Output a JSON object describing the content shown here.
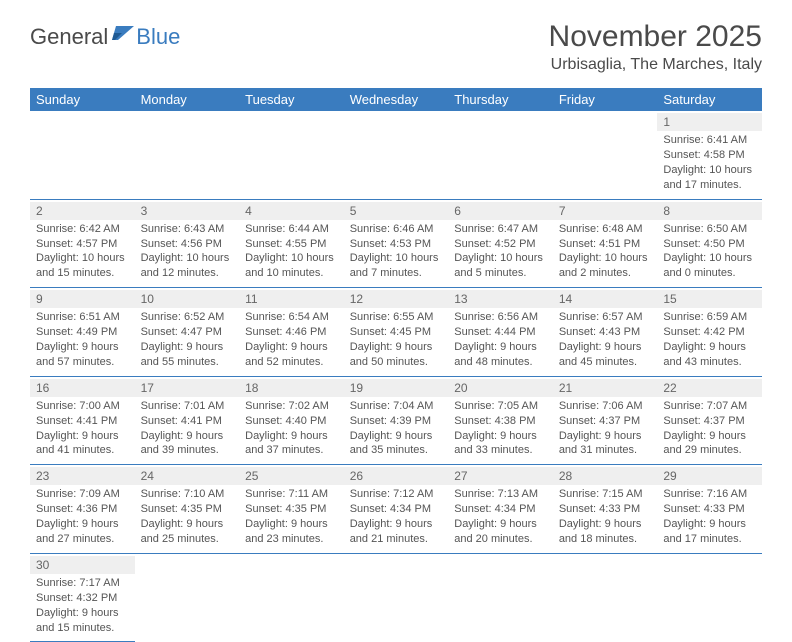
{
  "logo": {
    "text1": "General",
    "text2": "Blue"
  },
  "title": "November 2025",
  "location": "Urbisaglia, The Marches, Italy",
  "colors": {
    "header_bg": "#3a7cbf",
    "header_text": "#ffffff",
    "grid_line": "#3a7cbf",
    "daynum_bg": "#efefef",
    "text": "#555555",
    "logo_gray": "#4a4a4a",
    "logo_blue": "#3a7cbf"
  },
  "typography": {
    "title_fontsize": 30,
    "location_fontsize": 16,
    "header_fontsize": 13,
    "cell_fontsize": 11
  },
  "day_headers": [
    "Sunday",
    "Monday",
    "Tuesday",
    "Wednesday",
    "Thursday",
    "Friday",
    "Saturday"
  ],
  "weeks": [
    [
      null,
      null,
      null,
      null,
      null,
      null,
      {
        "num": "1",
        "sr": "Sunrise: 6:41 AM",
        "ss": "Sunset: 4:58 PM",
        "dl1": "Daylight: 10 hours",
        "dl2": "and 17 minutes."
      }
    ],
    [
      {
        "num": "2",
        "sr": "Sunrise: 6:42 AM",
        "ss": "Sunset: 4:57 PM",
        "dl1": "Daylight: 10 hours",
        "dl2": "and 15 minutes."
      },
      {
        "num": "3",
        "sr": "Sunrise: 6:43 AM",
        "ss": "Sunset: 4:56 PM",
        "dl1": "Daylight: 10 hours",
        "dl2": "and 12 minutes."
      },
      {
        "num": "4",
        "sr": "Sunrise: 6:44 AM",
        "ss": "Sunset: 4:55 PM",
        "dl1": "Daylight: 10 hours",
        "dl2": "and 10 minutes."
      },
      {
        "num": "5",
        "sr": "Sunrise: 6:46 AM",
        "ss": "Sunset: 4:53 PM",
        "dl1": "Daylight: 10 hours",
        "dl2": "and 7 minutes."
      },
      {
        "num": "6",
        "sr": "Sunrise: 6:47 AM",
        "ss": "Sunset: 4:52 PM",
        "dl1": "Daylight: 10 hours",
        "dl2": "and 5 minutes."
      },
      {
        "num": "7",
        "sr": "Sunrise: 6:48 AM",
        "ss": "Sunset: 4:51 PM",
        "dl1": "Daylight: 10 hours",
        "dl2": "and 2 minutes."
      },
      {
        "num": "8",
        "sr": "Sunrise: 6:50 AM",
        "ss": "Sunset: 4:50 PM",
        "dl1": "Daylight: 10 hours",
        "dl2": "and 0 minutes."
      }
    ],
    [
      {
        "num": "9",
        "sr": "Sunrise: 6:51 AM",
        "ss": "Sunset: 4:49 PM",
        "dl1": "Daylight: 9 hours",
        "dl2": "and 57 minutes."
      },
      {
        "num": "10",
        "sr": "Sunrise: 6:52 AM",
        "ss": "Sunset: 4:47 PM",
        "dl1": "Daylight: 9 hours",
        "dl2": "and 55 minutes."
      },
      {
        "num": "11",
        "sr": "Sunrise: 6:54 AM",
        "ss": "Sunset: 4:46 PM",
        "dl1": "Daylight: 9 hours",
        "dl2": "and 52 minutes."
      },
      {
        "num": "12",
        "sr": "Sunrise: 6:55 AM",
        "ss": "Sunset: 4:45 PM",
        "dl1": "Daylight: 9 hours",
        "dl2": "and 50 minutes."
      },
      {
        "num": "13",
        "sr": "Sunrise: 6:56 AM",
        "ss": "Sunset: 4:44 PM",
        "dl1": "Daylight: 9 hours",
        "dl2": "and 48 minutes."
      },
      {
        "num": "14",
        "sr": "Sunrise: 6:57 AM",
        "ss": "Sunset: 4:43 PM",
        "dl1": "Daylight: 9 hours",
        "dl2": "and 45 minutes."
      },
      {
        "num": "15",
        "sr": "Sunrise: 6:59 AM",
        "ss": "Sunset: 4:42 PM",
        "dl1": "Daylight: 9 hours",
        "dl2": "and 43 minutes."
      }
    ],
    [
      {
        "num": "16",
        "sr": "Sunrise: 7:00 AM",
        "ss": "Sunset: 4:41 PM",
        "dl1": "Daylight: 9 hours",
        "dl2": "and 41 minutes."
      },
      {
        "num": "17",
        "sr": "Sunrise: 7:01 AM",
        "ss": "Sunset: 4:41 PM",
        "dl1": "Daylight: 9 hours",
        "dl2": "and 39 minutes."
      },
      {
        "num": "18",
        "sr": "Sunrise: 7:02 AM",
        "ss": "Sunset: 4:40 PM",
        "dl1": "Daylight: 9 hours",
        "dl2": "and 37 minutes."
      },
      {
        "num": "19",
        "sr": "Sunrise: 7:04 AM",
        "ss": "Sunset: 4:39 PM",
        "dl1": "Daylight: 9 hours",
        "dl2": "and 35 minutes."
      },
      {
        "num": "20",
        "sr": "Sunrise: 7:05 AM",
        "ss": "Sunset: 4:38 PM",
        "dl1": "Daylight: 9 hours",
        "dl2": "and 33 minutes."
      },
      {
        "num": "21",
        "sr": "Sunrise: 7:06 AM",
        "ss": "Sunset: 4:37 PM",
        "dl1": "Daylight: 9 hours",
        "dl2": "and 31 minutes."
      },
      {
        "num": "22",
        "sr": "Sunrise: 7:07 AM",
        "ss": "Sunset: 4:37 PM",
        "dl1": "Daylight: 9 hours",
        "dl2": "and 29 minutes."
      }
    ],
    [
      {
        "num": "23",
        "sr": "Sunrise: 7:09 AM",
        "ss": "Sunset: 4:36 PM",
        "dl1": "Daylight: 9 hours",
        "dl2": "and 27 minutes."
      },
      {
        "num": "24",
        "sr": "Sunrise: 7:10 AM",
        "ss": "Sunset: 4:35 PM",
        "dl1": "Daylight: 9 hours",
        "dl2": "and 25 minutes."
      },
      {
        "num": "25",
        "sr": "Sunrise: 7:11 AM",
        "ss": "Sunset: 4:35 PM",
        "dl1": "Daylight: 9 hours",
        "dl2": "and 23 minutes."
      },
      {
        "num": "26",
        "sr": "Sunrise: 7:12 AM",
        "ss": "Sunset: 4:34 PM",
        "dl1": "Daylight: 9 hours",
        "dl2": "and 21 minutes."
      },
      {
        "num": "27",
        "sr": "Sunrise: 7:13 AM",
        "ss": "Sunset: 4:34 PM",
        "dl1": "Daylight: 9 hours",
        "dl2": "and 20 minutes."
      },
      {
        "num": "28",
        "sr": "Sunrise: 7:15 AM",
        "ss": "Sunset: 4:33 PM",
        "dl1": "Daylight: 9 hours",
        "dl2": "and 18 minutes."
      },
      {
        "num": "29",
        "sr": "Sunrise: 7:16 AM",
        "ss": "Sunset: 4:33 PM",
        "dl1": "Daylight: 9 hours",
        "dl2": "and 17 minutes."
      }
    ],
    [
      {
        "num": "30",
        "sr": "Sunrise: 7:17 AM",
        "ss": "Sunset: 4:32 PM",
        "dl1": "Daylight: 9 hours",
        "dl2": "and 15 minutes."
      },
      null,
      null,
      null,
      null,
      null,
      null
    ]
  ]
}
